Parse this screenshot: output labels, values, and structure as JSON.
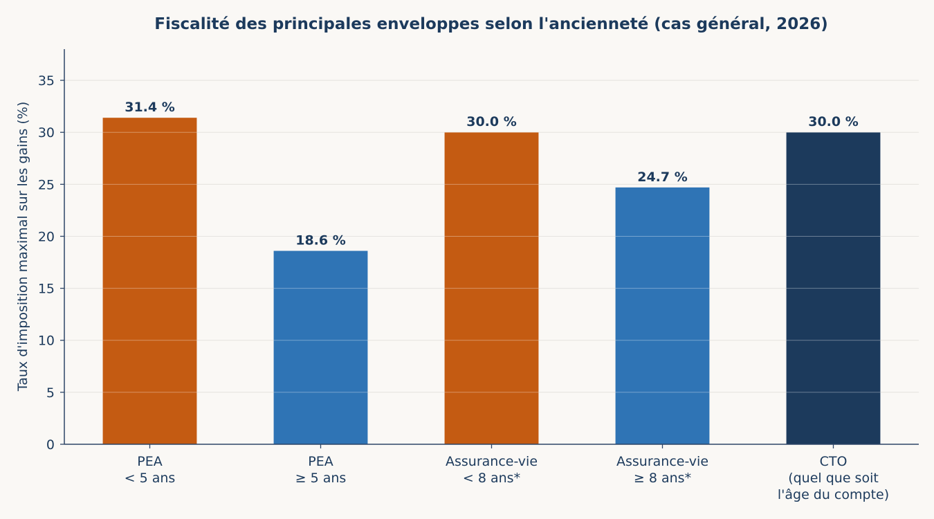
{
  "chart_data": {
    "type": "bar",
    "title": "Fiscalité des principales enveloppes selon l'ancienneté (cas général, 2026)",
    "xlabel": "",
    "ylabel": "Taux d'imposition maximal sur les gains (%)",
    "ylim": [
      0,
      38
    ],
    "yticks": [
      0,
      5,
      10,
      15,
      20,
      25,
      30,
      35
    ],
    "grid": true,
    "categories": [
      [
        "PEA",
        "< 5 ans"
      ],
      [
        "PEA",
        "≥ 5 ans"
      ],
      [
        "Assurance-vie",
        "< 8 ans*"
      ],
      [
        "Assurance-vie",
        "≥ 8 ans*"
      ],
      [
        "CTO",
        "(quel que soit",
        "l'âge du compte)"
      ]
    ],
    "values": [
      31.4,
      18.6,
      30.0,
      24.7,
      30.0
    ],
    "value_labels": [
      "31.4 %",
      "18.6 %",
      "30.0 %",
      "24.7 %",
      "30.0 %"
    ],
    "colors": [
      "#c45b12",
      "#2f74b5",
      "#c45b12",
      "#2f74b5",
      "#1c3a5c"
    ]
  }
}
